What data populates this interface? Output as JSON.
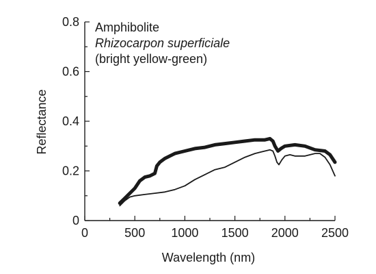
{
  "chart_data": {
    "type": "line",
    "xlabel": "Wavelength (nm)",
    "ylabel": "Reflectance",
    "xlim": [
      0,
      2500
    ],
    "ylim": [
      0,
      0.8
    ],
    "x_ticks": [
      0,
      500,
      1000,
      1500,
      2000,
      2500
    ],
    "x_tick_labels": [
      "0",
      "500",
      "1000",
      "1500",
      "2000",
      "2500"
    ],
    "y_ticks": [
      0,
      0.2,
      0.4,
      0.6,
      0.8
    ],
    "y_tick_labels": [
      "0",
      "0.2",
      "0.4",
      "0.6",
      "0.8"
    ],
    "x_minor_step": 250,
    "y_minor_step": 0.1,
    "annotations": [
      {
        "text": "Amphibolite",
        "style": "normal"
      },
      {
        "text": "Rhizocarpon superficiale",
        "style": "italic"
      },
      {
        "text": "(bright yellow-green)",
        "style": "normal"
      }
    ],
    "series": [
      {
        "style": "thick",
        "color": "#1a1a1a",
        "points": [
          [
            350,
            0.07
          ],
          [
            400,
            0.09
          ],
          [
            450,
            0.11
          ],
          [
            500,
            0.13
          ],
          [
            550,
            0.16
          ],
          [
            600,
            0.175
          ],
          [
            650,
            0.18
          ],
          [
            700,
            0.19
          ],
          [
            720,
            0.22
          ],
          [
            750,
            0.235
          ],
          [
            800,
            0.25
          ],
          [
            900,
            0.27
          ],
          [
            1000,
            0.28
          ],
          [
            1100,
            0.29
          ],
          [
            1200,
            0.295
          ],
          [
            1300,
            0.305
          ],
          [
            1400,
            0.31
          ],
          [
            1500,
            0.315
          ],
          [
            1600,
            0.32
          ],
          [
            1700,
            0.325
          ],
          [
            1800,
            0.325
          ],
          [
            1850,
            0.33
          ],
          [
            1880,
            0.32
          ],
          [
            1900,
            0.3
          ],
          [
            1930,
            0.28
          ],
          [
            1960,
            0.29
          ],
          [
            2000,
            0.3
          ],
          [
            2100,
            0.305
          ],
          [
            2200,
            0.3
          ],
          [
            2300,
            0.285
          ],
          [
            2400,
            0.28
          ],
          [
            2450,
            0.265
          ],
          [
            2500,
            0.235
          ]
        ]
      },
      {
        "style": "thin",
        "color": "#1a1a1a",
        "points": [
          [
            350,
            0.06
          ],
          [
            400,
            0.08
          ],
          [
            450,
            0.095
          ],
          [
            500,
            0.1
          ],
          [
            600,
            0.105
          ],
          [
            700,
            0.11
          ],
          [
            800,
            0.115
          ],
          [
            900,
            0.125
          ],
          [
            1000,
            0.14
          ],
          [
            1100,
            0.165
          ],
          [
            1200,
            0.185
          ],
          [
            1300,
            0.205
          ],
          [
            1400,
            0.215
          ],
          [
            1500,
            0.235
          ],
          [
            1600,
            0.255
          ],
          [
            1700,
            0.27
          ],
          [
            1800,
            0.28
          ],
          [
            1850,
            0.285
          ],
          [
            1880,
            0.28
          ],
          [
            1900,
            0.26
          ],
          [
            1920,
            0.235
          ],
          [
            1940,
            0.225
          ],
          [
            1970,
            0.245
          ],
          [
            2000,
            0.26
          ],
          [
            2050,
            0.265
          ],
          [
            2100,
            0.26
          ],
          [
            2200,
            0.26
          ],
          [
            2300,
            0.27
          ],
          [
            2350,
            0.27
          ],
          [
            2400,
            0.255
          ],
          [
            2450,
            0.225
          ],
          [
            2500,
            0.18
          ]
        ]
      }
    ]
  }
}
